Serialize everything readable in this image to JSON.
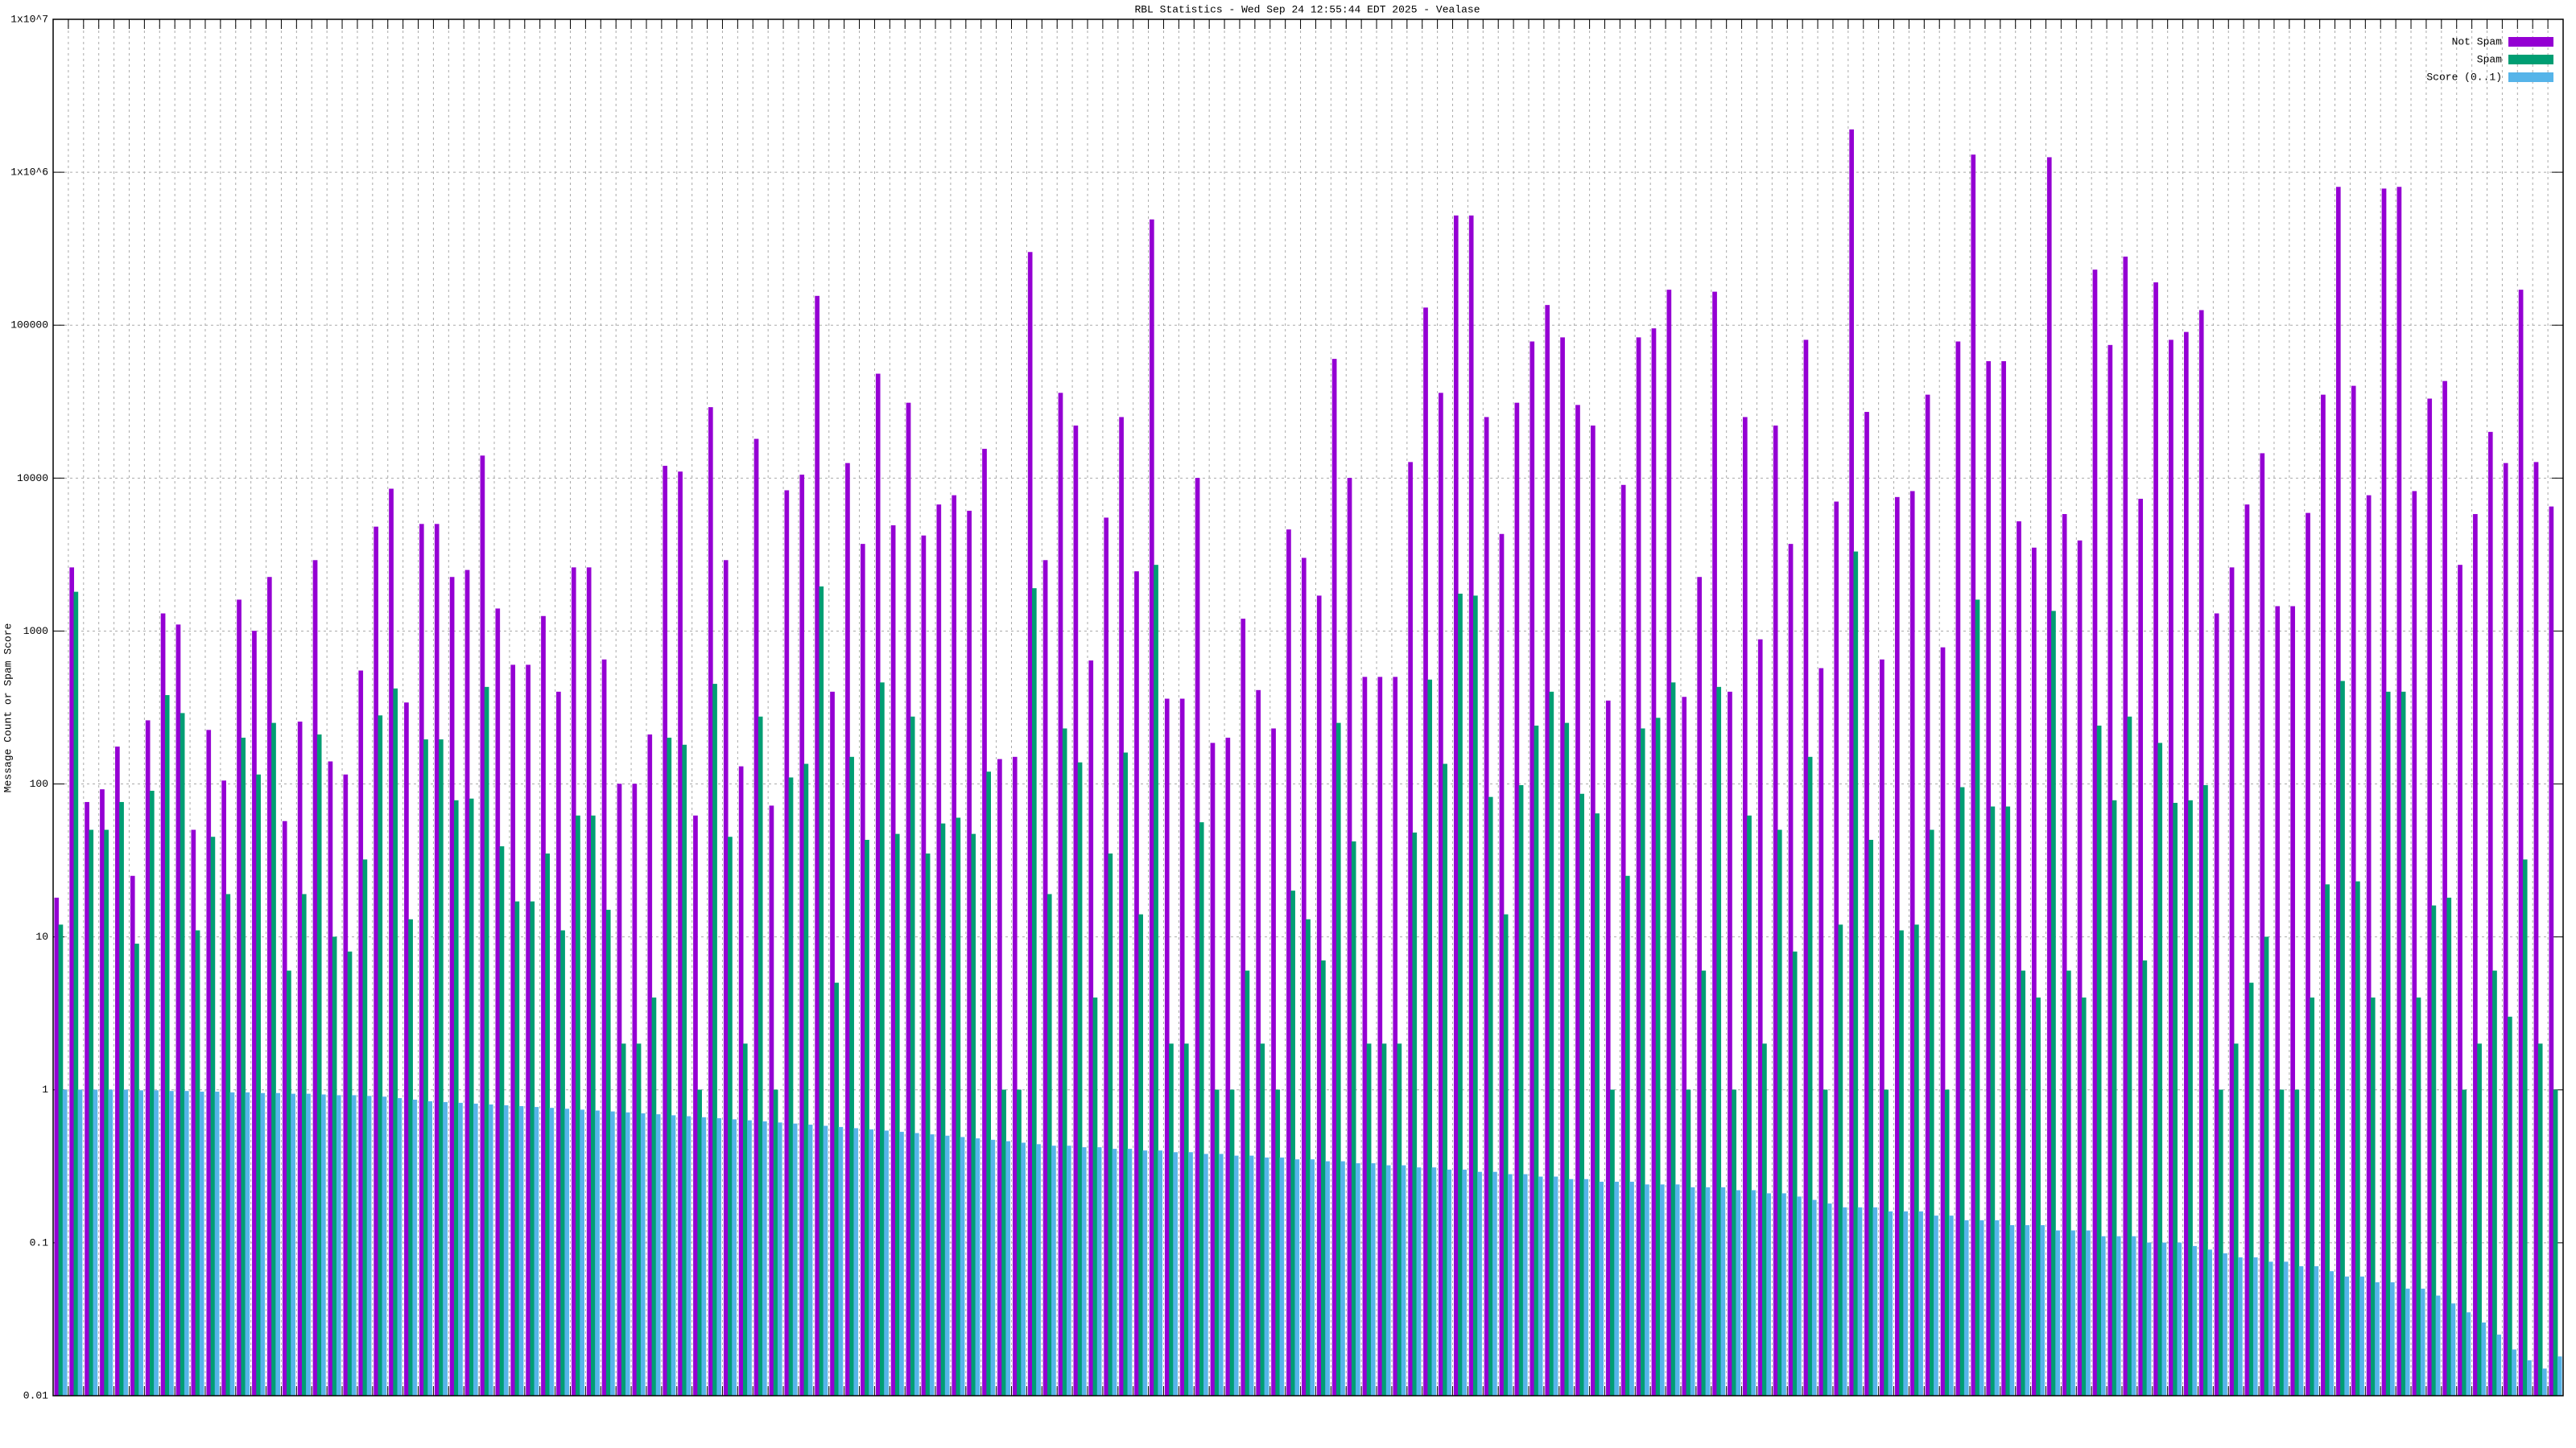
{
  "chart_data": {
    "type": "bar",
    "title": "RBL Statistics - Wed Sep 24 12:55:44 EDT 2025 - Vealase",
    "y_label": "Message Count or Spam Score",
    "log_scale": true,
    "grid": true,
    "legend": "top right",
    "ylim": [
      0.01,
      10000000
    ],
    "yticks": [
      0.01,
      0.1,
      1,
      10,
      100,
      1000,
      10000,
      100000,
      {
        "value": 1000000,
        "label": "1x10^6"
      },
      {
        "value": 10000000,
        "label": "1x10^7"
      }
    ],
    "series": [
      {
        "name": "Not Spam",
        "color": "#9400d3",
        "values": [
          18,
          2600,
          76,
          92,
          175,
          25,
          260,
          1300,
          1100,
          50,
          225,
          105,
          1600,
          1000,
          2250,
          57,
          255,
          2900,
          140,
          115,
          550,
          4800,
          8500,
          340,
          5000,
          5000,
          2250,
          2500,
          14000,
          1400,
          600,
          600,
          1250,
          400,
          2600,
          2600,
          650,
          100,
          100,
          210,
          12000,
          11000,
          62,
          29000,
          2900,
          130,
          18000,
          72,
          8300,
          10500,
          155000,
          400,
          12500,
          3700,
          48000,
          4900,
          31000,
          4200,
          6700,
          7700,
          6100,
          15500,
          145,
          150,
          300000,
          2900,
          36000,
          22000,
          640,
          5500,
          25000,
          2450,
          490000,
          360,
          360,
          10000,
          185,
          200,
          1200,
          410,
          230,
          4600,
          3000,
          1700,
          60000,
          10000,
          500,
          500,
          500,
          12700,
          130000,
          36000,
          520000,
          520000,
          25000,
          4300,
          31000,
          78000,
          135000,
          83000,
          30000,
          22000,
          350,
          9000,
          83000,
          95000,
          170000,
          370,
          2250,
          165000,
          400,
          25000,
          880,
          22000,
          3700,
          80000,
          570,
          7000,
          1900000,
          27000,
          650,
          7500,
          8200,
          35000,
          780,
          78000,
          1300000,
          58000,
          58000,
          5200,
          3500,
          1250000,
          5800,
          3900,
          230000,
          74000,
          280000,
          7300,
          190000,
          80000,
          90000,
          125000,
          1300,
          2600,
          6700,
          14500,
          1450,
          1450,
          5900,
          35000,
          800000,
          40000,
          7700,
          780000,
          800000,
          8200,
          33000,
          43000,
          2700,
          5800,
          20000,
          12500,
          170000,
          12700,
          6500
        ]
      },
      {
        "name": "Spam",
        "color": "#009e73",
        "values": [
          12,
          1800,
          50,
          50,
          76,
          9,
          90,
          380,
          290,
          11,
          45,
          19,
          200,
          115,
          250,
          6,
          19,
          210,
          10,
          8,
          32,
          280,
          420,
          13,
          195,
          195,
          78,
          80,
          430,
          39,
          17,
          17,
          35,
          11,
          62,
          62,
          15,
          2,
          2,
          4,
          200,
          180,
          1,
          450,
          45,
          2,
          275,
          1,
          110,
          135,
          1950,
          5,
          150,
          43,
          460,
          47,
          275,
          35,
          55,
          60,
          47,
          120,
          1,
          1,
          1900,
          19,
          230,
          138,
          4,
          35,
          160,
          14,
          2700,
          2,
          2,
          56,
          1,
          1,
          6,
          2,
          1,
          20,
          13,
          7,
          250,
          42,
          2,
          2,
          2,
          48,
          480,
          135,
          1750,
          1700,
          82,
          14,
          98,
          240,
          400,
          250,
          86,
          64,
          1,
          25,
          230,
          270,
          460,
          1,
          6,
          430,
          1,
          62,
          2,
          50,
          8,
          150,
          1,
          12,
          3300,
          43,
          1,
          11,
          12,
          50,
          1,
          95,
          1600,
          71,
          71,
          6,
          4,
          1350,
          6,
          4,
          240,
          78,
          275,
          7,
          185,
          75,
          78,
          98,
          1,
          2,
          5,
          10,
          1,
          1,
          4,
          22,
          470,
          23,
          4,
          400,
          400,
          4,
          16,
          18,
          1,
          2,
          6,
          3,
          32,
          2,
          1
        ]
      },
      {
        "name": "Score (0..1)",
        "color": "#56b4e9",
        "values": [
          1,
          1,
          1,
          1,
          1,
          0.99,
          0.99,
          0.98,
          0.98,
          0.97,
          0.97,
          0.96,
          0.96,
          0.95,
          0.95,
          0.94,
          0.94,
          0.93,
          0.92,
          0.92,
          0.91,
          0.9,
          0.88,
          0.86,
          0.84,
          0.83,
          0.82,
          0.81,
          0.8,
          0.79,
          0.78,
          0.77,
          0.76,
          0.75,
          0.74,
          0.73,
          0.72,
          0.71,
          0.7,
          0.69,
          0.68,
          0.67,
          0.66,
          0.65,
          0.64,
          0.63,
          0.62,
          0.61,
          0.6,
          0.59,
          0.58,
          0.57,
          0.56,
          0.55,
          0.54,
          0.53,
          0.52,
          0.51,
          0.5,
          0.49,
          0.48,
          0.47,
          0.46,
          0.45,
          0.44,
          0.43,
          0.43,
          0.42,
          0.42,
          0.41,
          0.41,
          0.4,
          0.4,
          0.39,
          0.39,
          0.38,
          0.38,
          0.37,
          0.37,
          0.36,
          0.36,
          0.35,
          0.35,
          0.34,
          0.34,
          0.33,
          0.33,
          0.32,
          0.32,
          0.31,
          0.31,
          0.3,
          0.3,
          0.29,
          0.29,
          0.28,
          0.28,
          0.27,
          0.27,
          0.26,
          0.26,
          0.25,
          0.25,
          0.25,
          0.24,
          0.24,
          0.24,
          0.23,
          0.23,
          0.23,
          0.22,
          0.22,
          0.21,
          0.21,
          0.2,
          0.19,
          0.18,
          0.17,
          0.17,
          0.17,
          0.16,
          0.16,
          0.16,
          0.15,
          0.15,
          0.14,
          0.14,
          0.14,
          0.13,
          0.13,
          0.13,
          0.12,
          0.12,
          0.12,
          0.11,
          0.11,
          0.11,
          0.1,
          0.1,
          0.1,
          0.095,
          0.09,
          0.085,
          0.08,
          0.08,
          0.075,
          0.075,
          0.07,
          0.07,
          0.065,
          0.06,
          0.06,
          0.055,
          0.055,
          0.05,
          0.05,
          0.045,
          0.04,
          0.035,
          0.03,
          0.025,
          0.02,
          0.017,
          0.015,
          0.018
        ]
      }
    ]
  }
}
